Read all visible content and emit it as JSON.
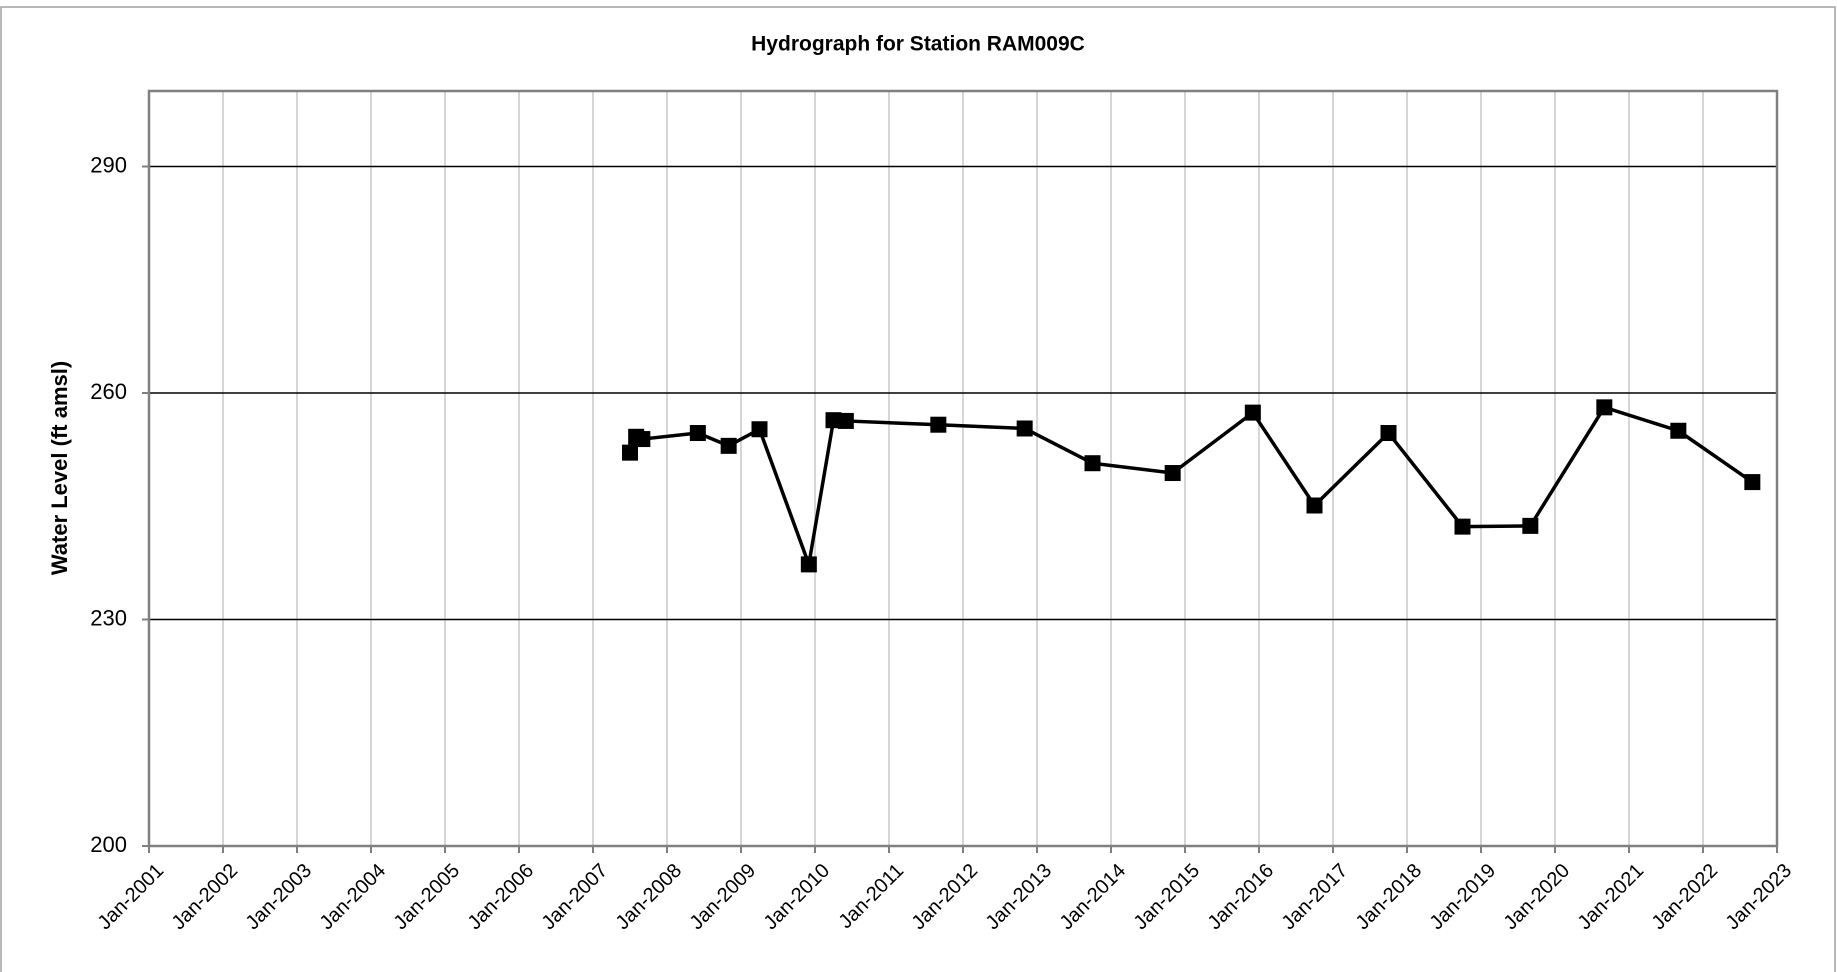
{
  "chart_data": {
    "type": "line",
    "title": "Hydrograph for Station RAM009C",
    "y_label": "Water Level (ft amsl)",
    "color": "#000000",
    "grid": true,
    "x": [
      "2007-07",
      "2007-08",
      "2007-09",
      "2008-06",
      "2008-11",
      "2009-04",
      "2009-12",
      "2010-04",
      "2010-06",
      "2011-09",
      "2012-11",
      "2013-10",
      "2014-11",
      "2015-12",
      "2016-10",
      "2017-10",
      "2018-10",
      "2019-09",
      "2020-09",
      "2021-09",
      "2022-09"
    ],
    "values": [
      252.1,
      254.2,
      253.9,
      254.7,
      253.0,
      255.2,
      237.3,
      256.4,
      256.3,
      255.8,
      255.3,
      250.7,
      249.4,
      257.4,
      245.1,
      254.7,
      242.3,
      242.4,
      258.1,
      255.0,
      248.2
    ],
    "xlim": [
      "2001-01",
      "2023-01"
    ],
    "xticks": [
      {
        "value": "2001-01",
        "label": "Jan-2001"
      },
      {
        "value": "2002-01",
        "label": "Jan-2002"
      },
      {
        "value": "2003-01",
        "label": "Jan-2003"
      },
      {
        "value": "2004-01",
        "label": "Jan-2004"
      },
      {
        "value": "2005-01",
        "label": "Jan-2005"
      },
      {
        "value": "2006-01",
        "label": "Jan-2006"
      },
      {
        "value": "2007-01",
        "label": "Jan-2007"
      },
      {
        "value": "2008-01",
        "label": "Jan-2008"
      },
      {
        "value": "2009-01",
        "label": "Jan-2009"
      },
      {
        "value": "2010-01",
        "label": "Jan-2010"
      },
      {
        "value": "2011-01",
        "label": "Jan-2011"
      },
      {
        "value": "2012-01",
        "label": "Jan-2012"
      },
      {
        "value": "2013-01",
        "label": "Jan-2013"
      },
      {
        "value": "2014-01",
        "label": "Jan-2014"
      },
      {
        "value": "2015-01",
        "label": "Jan-2015"
      },
      {
        "value": "2016-01",
        "label": "Jan-2016"
      },
      {
        "value": "2017-01",
        "label": "Jan-2017"
      },
      {
        "value": "2018-01",
        "label": "Jan-2018"
      },
      {
        "value": "2019-01",
        "label": "Jan-2019"
      },
      {
        "value": "2020-01",
        "label": "Jan-2020"
      },
      {
        "value": "2021-01",
        "label": "Jan-2021"
      },
      {
        "value": "2022-01",
        "label": "Jan-2022"
      },
      {
        "value": "2023-01",
        "label": "Jan-2023"
      }
    ],
    "ylim": [
      200,
      300
    ],
    "yticks": [
      200,
      230,
      260,
      290
    ]
  }
}
